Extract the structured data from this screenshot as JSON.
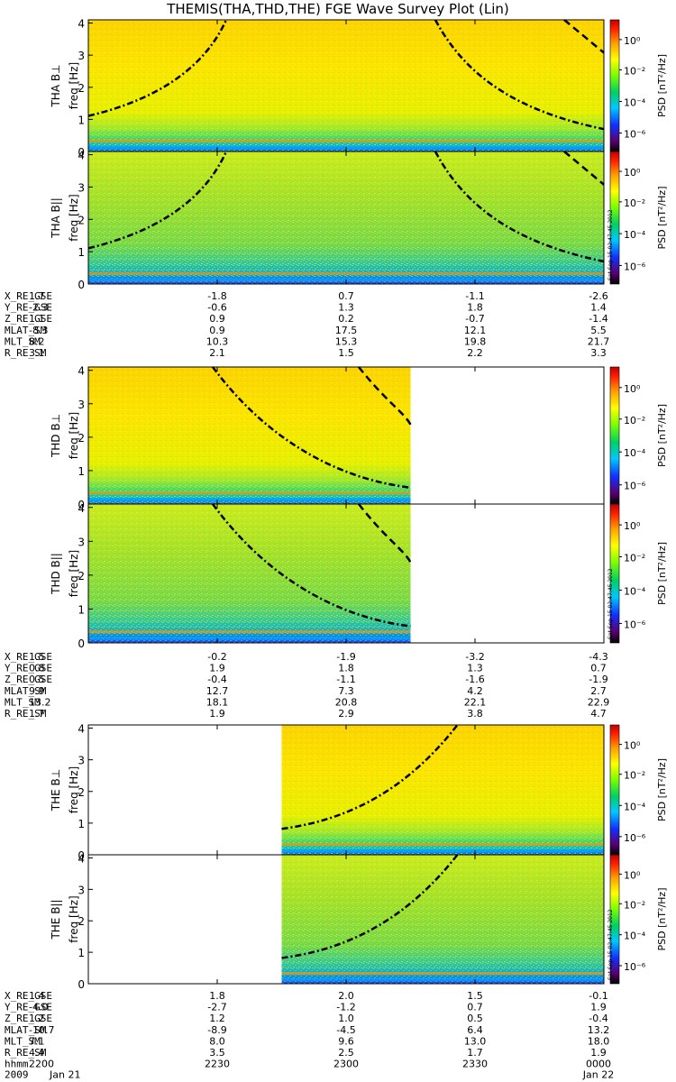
{
  "title": "THEMIS(THA,THD,THE) FGE Wave Survey Plot (Lin)",
  "colorbar": {
    "label": "PSD [nT²/Hz]",
    "ticks": [
      "10⁰",
      "10⁻²",
      "10⁻⁴",
      "10⁻⁶"
    ],
    "stamp": "Sat Sep 15 02:47:45 2012"
  },
  "freq_axis": {
    "label": "freq [Hz]",
    "ticks": [
      "0",
      "1",
      "2",
      "3",
      "4"
    ],
    "range": [
      0,
      4.1
    ]
  },
  "time_axis": {
    "range": [
      "2200",
      "0000"
    ],
    "labels": [
      "2200",
      "2230",
      "2300",
      "2330",
      "0000"
    ],
    "row_label": "hhmm",
    "date_label": "2009",
    "date_start": "Jan 21",
    "date_end": "Jan 22"
  },
  "chart_data": [
    {
      "type": "heatmap",
      "probe": "THA",
      "panels": [
        {
          "ylabel": "THA B⊥"
        },
        {
          "ylabel": "THA B||"
        }
      ],
      "data_coverage": [
        "2200",
        "0000"
      ],
      "ephemeris": [
        {
          "label": "X_RE_GSE",
          "values": [
            "1.7",
            "-1.8",
            "0.7",
            "-1.1",
            "-2.6"
          ]
        },
        {
          "label": "Y_RE_GSE",
          "values": [
            "-2.3",
            "-0.6",
            "1.3",
            "1.8",
            "1.4"
          ]
        },
        {
          "label": "Z_RE_GSE",
          "values": [
            "1.1",
            "0.9",
            "0.2",
            "-0.7",
            "-1.4"
          ]
        },
        {
          "label": "MLAT_SM",
          "values": [
            "-8.3",
            "0.9",
            "17.5",
            "12.1",
            "5.5"
          ]
        },
        {
          "label": "MLT_SM",
          "values": [
            "8.2",
            "10.3",
            "15.3",
            "19.8",
            "21.7"
          ]
        },
        {
          "label": "R_RE_SM",
          "values": [
            "3.1",
            "2.1",
            "1.5",
            "2.2",
            "3.3"
          ]
        }
      ]
    },
    {
      "type": "heatmap",
      "probe": "THD",
      "panels": [
        {
          "ylabel": "THD B⊥"
        },
        {
          "ylabel": "THD B||"
        }
      ],
      "data_coverage": [
        "2200",
        "2315"
      ],
      "ephemeris": [
        {
          "label": "X_RE_GSE",
          "values": [
            "1.5",
            "-0.2",
            "-1.9",
            "-3.2",
            "-4.3"
          ]
        },
        {
          "label": "Y_RE_GSE",
          "values": [
            "0.8",
            "1.9",
            "1.8",
            "1.3",
            "0.7"
          ]
        },
        {
          "label": "Z_RE_GSE",
          "values": [
            "0.5",
            "-0.4",
            "-1.1",
            "-1.6",
            "-1.9"
          ]
        },
        {
          "label": "MLAT_SM",
          "values": [
            "9.9",
            "12.7",
            "7.3",
            "4.2",
            "2.7"
          ]
        },
        {
          "label": "MLT_SM",
          "values": [
            "13.2",
            "18.1",
            "20.8",
            "22.1",
            "22.9"
          ]
        },
        {
          "label": "R_RE_SM",
          "values": [
            "1.7",
            "1.9",
            "2.9",
            "3.8",
            "4.7"
          ]
        }
      ]
    },
    {
      "type": "heatmap",
      "probe": "THE",
      "panels": [
        {
          "ylabel": "THE B⊥"
        },
        {
          "ylabel": "THE B||"
        }
      ],
      "data_coverage": [
        "2245",
        "0000"
      ],
      "ephemeris": [
        {
          "label": "X_RE_GSE",
          "values": [
            "1.4",
            "1.8",
            "2.0",
            "1.5",
            "-0.1"
          ]
        },
        {
          "label": "Y_RE_GSE",
          "values": [
            "-4.0",
            "-2.7",
            "-1.2",
            "0.7",
            "1.9"
          ]
        },
        {
          "label": "Z_RE_GSE",
          "values": [
            "1.2",
            "1.2",
            "1.0",
            "0.5",
            "-0.4"
          ]
        },
        {
          "label": "MLAT_SM",
          "values": [
            "-10.7",
            "-8.9",
            "-4.5",
            "6.4",
            "13.2"
          ]
        },
        {
          "label": "MLT_SM",
          "values": [
            "7.1",
            "8.0",
            "9.6",
            "13.0",
            "18.0"
          ]
        },
        {
          "label": "R_RE_SM",
          "values": [
            "4.4",
            "3.5",
            "2.5",
            "1.7",
            "1.9"
          ]
        }
      ]
    }
  ]
}
